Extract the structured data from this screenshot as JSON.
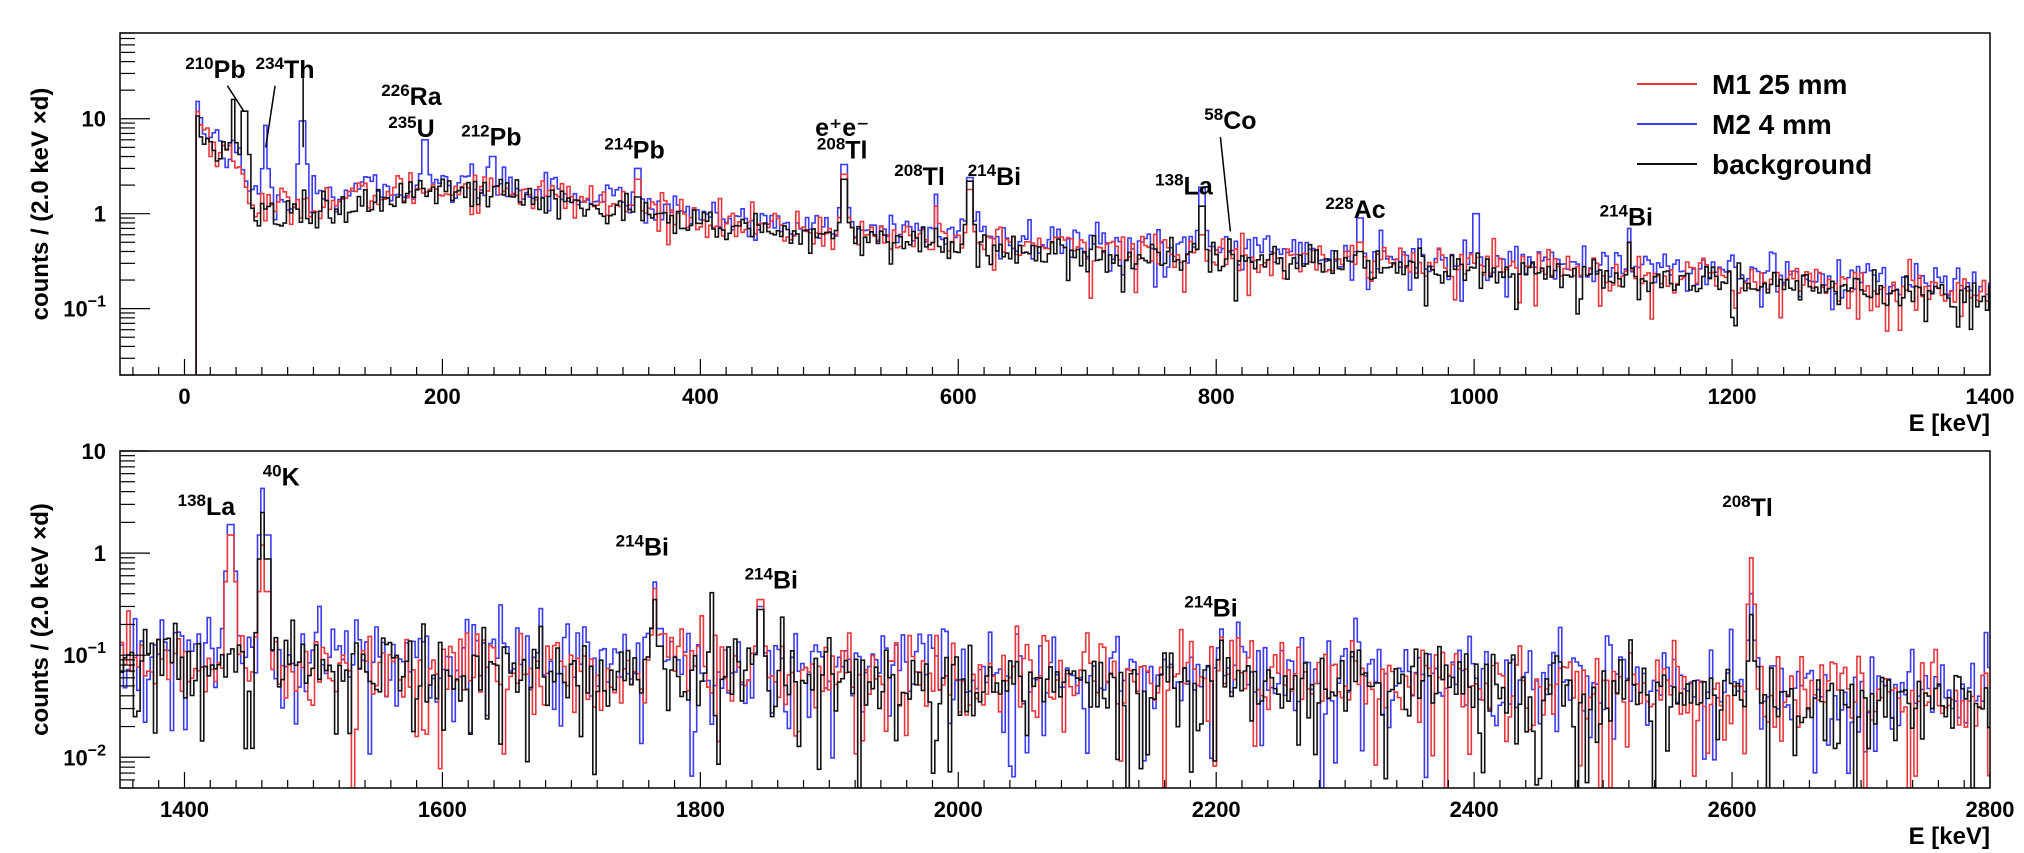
{
  "chart_data": [
    {
      "type": "line",
      "style": "histogram",
      "xlabel": "E [keV]",
      "ylabel": "counts / (2.0 keV ×d)",
      "xlim": [
        -50,
        1400
      ],
      "ylim": [
        0.02,
        80
      ],
      "yscale": "log",
      "grid": false,
      "legend_position": "top-right",
      "x_ticks": [
        0,
        200,
        400,
        600,
        800,
        1000,
        1200,
        1400
      ],
      "y_ticks": [
        {
          "value": 10,
          "label": "10"
        },
        {
          "value": 1,
          "label": "1"
        },
        {
          "value": 0.1,
          "base": "10",
          "exp": "−1"
        }
      ],
      "series": [
        {
          "name": "M1 25 mm",
          "color": "#e8383d",
          "level_factor": 1.15,
          "peak_heights": {
            "46": 1.9,
            "92": 0.9,
            "186": 0.5,
            "239": 1.9,
            "352": 2.3,
            "511": 2.6,
            "583": 1.2,
            "609": 1.8,
            "789": 0.6,
            "811": 0.3,
            "911": 0.5,
            "1001": 0.3,
            "1120": 0.5
          }
        },
        {
          "name": "M2 4 mm",
          "color": "#3b3bf0",
          "level_factor": 1.3,
          "peak_heights": {
            "46": 0.9,
            "63": 8.5,
            "92": 9.5,
            "186": 6.0,
            "239": 4.0,
            "352": 3.0,
            "511": 3.3,
            "583": 1.6,
            "609": 2.4,
            "789": 1.9,
            "911": 0.9,
            "1001": 1.0,
            "1120": 0.7
          }
        },
        {
          "name": "background",
          "color": "#111111",
          "level_factor": 1.0,
          "peak_heights": {
            "38": 16,
            "46": 12,
            "186": 0.6,
            "239": 1.2,
            "352": 1.5,
            "511": 2.3,
            "583": 0.7,
            "609": 2.2,
            "789": 1.2,
            "911": 0.4,
            "1120": 0.5
          }
        }
      ],
      "continuum": {
        "x": [
          10,
          20,
          40,
          55,
          100,
          180,
          250,
          350,
          450,
          550,
          700,
          900,
          1100,
          1300,
          1400
        ],
        "y": [
          10,
          5,
          3,
          1.0,
          1.1,
          1.6,
          1.6,
          1.0,
          0.62,
          0.5,
          0.38,
          0.28,
          0.22,
          0.16,
          0.13
        ]
      },
      "annotations": [
        {
          "sup": "210",
          "text": "Pb",
          "x": 24,
          "y": 27,
          "line_to": [
            46,
            12
          ]
        },
        {
          "sup": "234",
          "text": "Th",
          "x": 78,
          "y": 27,
          "line_to": [
            63,
            5
          ]
        },
        {
          "sup": "",
          "text": "",
          "x": 0,
          "y": 0,
          "line_from": [
            92,
            30
          ],
          "line_to": [
            92,
            5
          ]
        },
        {
          "sup": "226",
          "text": "Ra",
          "x": 176,
          "y": 14
        },
        {
          "sup": "235",
          "text": "U",
          "x": 176,
          "y": 6.4
        },
        {
          "sup": "212",
          "text": "Pb",
          "x": 238,
          "y": 5.2
        },
        {
          "sup": "214",
          "text": "Pb",
          "x": 349,
          "y": 3.8
        },
        {
          "sup": "",
          "text": "e⁺e⁻",
          "x": 510,
          "y": 6.6
        },
        {
          "sup": "208",
          "text": "Tl",
          "x": 510,
          "y": 3.8
        },
        {
          "sup": "208",
          "text": "Tl",
          "x": 570,
          "y": 2.0
        },
        {
          "sup": "214",
          "text": "Bi",
          "x": 628,
          "y": 2.0
        },
        {
          "sup": "138",
          "text": "La",
          "x": 775,
          "y": 1.6
        },
        {
          "sup": "58",
          "text": "Co",
          "x": 811,
          "y": 7.8,
          "line_to": [
            811,
            0.65
          ]
        },
        {
          "sup": "228",
          "text": "Ac",
          "x": 908,
          "y": 0.9
        },
        {
          "sup": "214",
          "text": "Bi",
          "x": 1118,
          "y": 0.75
        }
      ]
    },
    {
      "type": "line",
      "style": "histogram",
      "xlabel": "E [keV]",
      "ylabel": "counts / (2.0 keV ×d)",
      "xlim": [
        1350,
        2800
      ],
      "ylim": [
        0.005,
        10
      ],
      "yscale": "log",
      "grid": false,
      "x_ticks": [
        1400,
        1600,
        1800,
        2000,
        2200,
        2400,
        2600,
        2800
      ],
      "y_ticks": [
        {
          "value": 10,
          "label": "10"
        },
        {
          "value": 1,
          "label": "1"
        },
        {
          "value": 0.1,
          "base": "10",
          "exp": "−1"
        },
        {
          "value": 0.01,
          "base": "10",
          "exp": "−2"
        }
      ],
      "series": [
        {
          "name": "M1 25 mm",
          "color": "#e8383d",
          "level_factor": 0.95,
          "peak_heights": {
            "1436": 1.5,
            "1461": 1.2,
            "1765": 0.45,
            "1847": 0.35,
            "2204": 0.15,
            "2615": 0.9
          }
        },
        {
          "name": "M2 4 mm",
          "color": "#3b3bf0",
          "level_factor": 1.1,
          "peak_heights": {
            "1436": 1.9,
            "1461": 4.3,
            "1765": 0.52,
            "1847": 0.3,
            "2204": 0.18,
            "2615": 0.4
          }
        },
        {
          "name": "background",
          "color": "#111111",
          "level_factor": 0.85,
          "peak_heights": {
            "1461": 2.5,
            "1765": 0.35,
            "1847": 0.28,
            "2204": 0.14,
            "2615": 0.25
          }
        }
      ],
      "continuum": {
        "x": [
          1350,
          1500,
          1800,
          2100,
          2400,
          2700,
          2800
        ],
        "y": [
          0.1,
          0.09,
          0.075,
          0.065,
          0.055,
          0.045,
          0.04
        ]
      },
      "annotations": [
        {
          "sup": "138",
          "text": "La",
          "x": 1417,
          "y": 2.35
        },
        {
          "sup": "40",
          "text": "K",
          "x": 1475,
          "y": 4.6
        },
        {
          "sup": "214",
          "text": "Bi",
          "x": 1755,
          "y": 0.95
        },
        {
          "sup": "214",
          "text": "Bi",
          "x": 1855,
          "y": 0.45
        },
        {
          "sup": "214",
          "text": "Bi",
          "x": 2196,
          "y": 0.24
        },
        {
          "sup": "208",
          "text": "Tl",
          "x": 2612,
          "y": 2.3
        }
      ]
    }
  ]
}
